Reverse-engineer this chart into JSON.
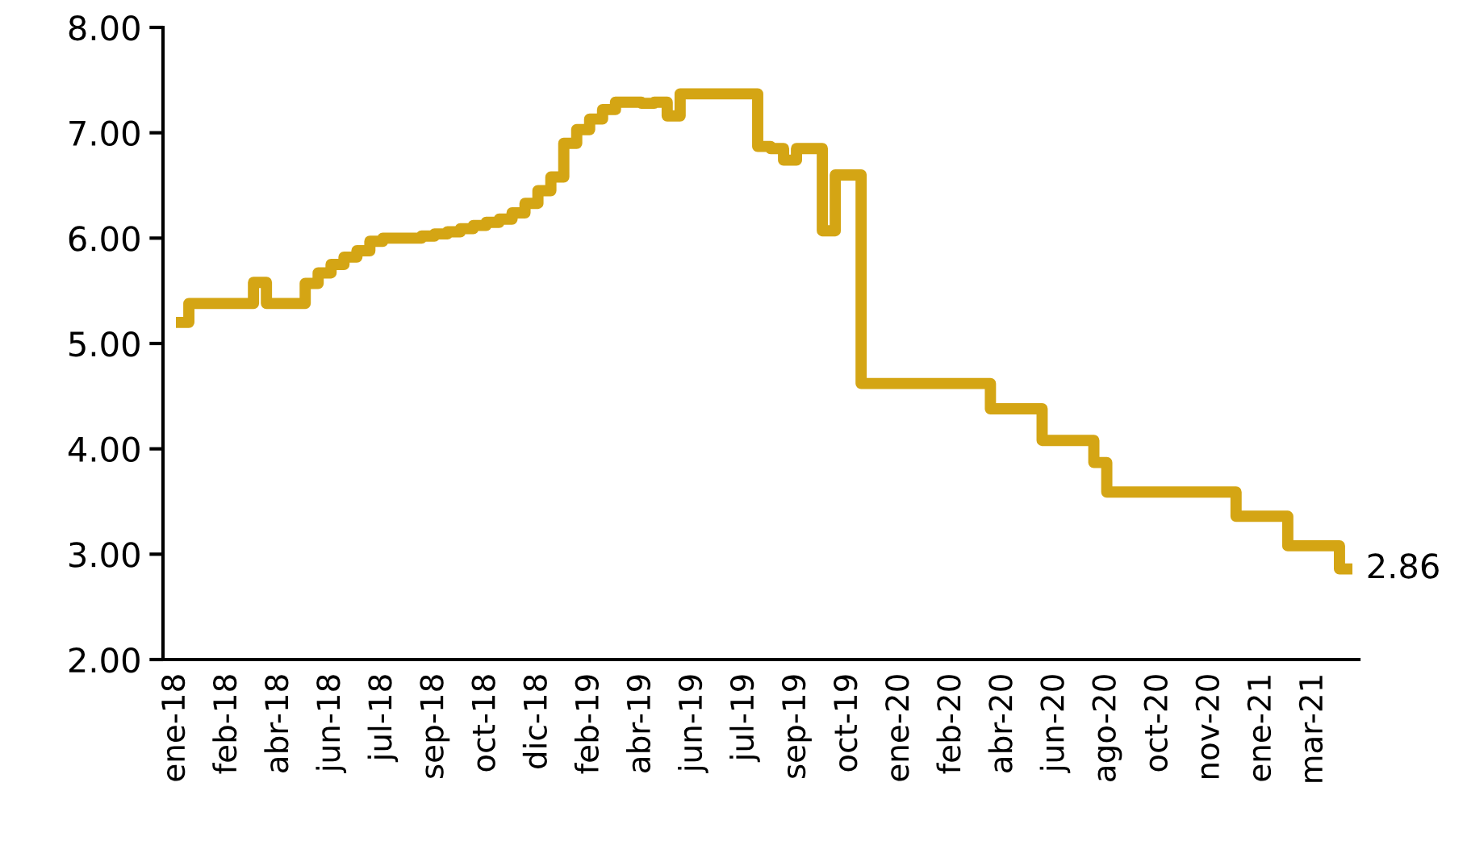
{
  "chart_data": {
    "type": "step",
    "categories": [
      "ene-18",
      null,
      null,
      null,
      "feb-18",
      null,
      null,
      null,
      "abr-18",
      null,
      null,
      null,
      "jun-18",
      null,
      null,
      null,
      "jul-18",
      null,
      null,
      null,
      "sep-18",
      null,
      null,
      null,
      "oct-18",
      null,
      null,
      null,
      "dic-18",
      null,
      null,
      null,
      "feb-19",
      null,
      null,
      null,
      "abr-19",
      null,
      null,
      null,
      "jun-19",
      null,
      null,
      null,
      "jul-19",
      null,
      null,
      null,
      "sep-19",
      null,
      null,
      null,
      "oct-19",
      null,
      null,
      null,
      "ene-20",
      null,
      null,
      null,
      "feb-20",
      null,
      null,
      null,
      "abr-20",
      null,
      null,
      null,
      "jun-20",
      null,
      null,
      null,
      "ago-20",
      null,
      null,
      null,
      "oct-20",
      null,
      null,
      null,
      "nov-20",
      null,
      null,
      null,
      "ene-21",
      null,
      null,
      null,
      "mar-21",
      null,
      null,
      null
    ],
    "series": [
      {
        "color": "#d4a514",
        "values": [
          5.2,
          5.38,
          5.38,
          5.38,
          5.38,
          5.38,
          5.58,
          5.38,
          5.38,
          5.38,
          5.57,
          5.67,
          5.75,
          5.82,
          5.88,
          5.97,
          6.0,
          6.0,
          6.0,
          6.02,
          6.04,
          6.06,
          6.09,
          6.12,
          6.15,
          6.18,
          6.24,
          6.33,
          6.45,
          6.58,
          6.9,
          7.03,
          7.13,
          7.22,
          7.29,
          7.29,
          7.28,
          7.29,
          7.16,
          7.37,
          7.37,
          7.37,
          7.37,
          7.37,
          7.37,
          6.87,
          6.85,
          6.74,
          6.85,
          6.85,
          6.07,
          6.6,
          6.6,
          4.62,
          4.62,
          4.62,
          4.62,
          4.62,
          4.62,
          4.62,
          4.62,
          4.62,
          4.62,
          4.38,
          4.38,
          4.38,
          4.38,
          4.08,
          4.08,
          4.08,
          4.08,
          3.87,
          3.59,
          3.59,
          3.59,
          3.59,
          3.59,
          3.59,
          3.59,
          3.59,
          3.59,
          3.59,
          3.36,
          3.36,
          3.36,
          3.36,
          3.08,
          3.08,
          3.08,
          3.08,
          2.86,
          2.86
        ],
        "value_labels": [
          null,
          null,
          null,
          null,
          null,
          null,
          null,
          null,
          null,
          null,
          null,
          null,
          null,
          null,
          null,
          null,
          null,
          null,
          null,
          null,
          null,
          null,
          null,
          null,
          null,
          null,
          null,
          null,
          null,
          null,
          null,
          null,
          null,
          null,
          null,
          null,
          null,
          null,
          null,
          null,
          null,
          null,
          null,
          null,
          null,
          null,
          null,
          null,
          null,
          null,
          null,
          null,
          null,
          null,
          null,
          null,
          null,
          null,
          null,
          null,
          null,
          null,
          null,
          null,
          null,
          null,
          null,
          null,
          null,
          null,
          null,
          null,
          null,
          null,
          null,
          null,
          null,
          null,
          null,
          null,
          null,
          null,
          null,
          null,
          null,
          null,
          null,
          null,
          null,
          null,
          null,
          "2.86"
        ]
      }
    ],
    "ylim": [
      2,
      8
    ],
    "yticks": [
      {
        "value": 2,
        "label": "2.00"
      },
      {
        "value": 3,
        "label": "3.00"
      },
      {
        "value": 4,
        "label": "4.00"
      },
      {
        "value": 5,
        "label": "5.00"
      },
      {
        "value": 6,
        "label": "6.00"
      },
      {
        "value": 7,
        "label": "7.00"
      },
      {
        "value": 8,
        "label": "8.00"
      }
    ],
    "line_style": "solid"
  }
}
